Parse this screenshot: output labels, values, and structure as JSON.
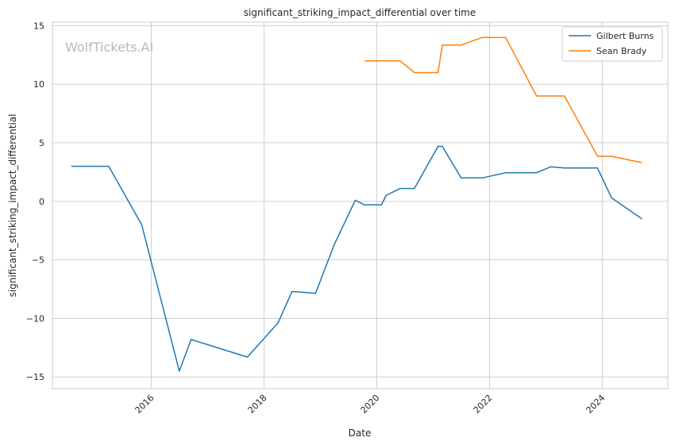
{
  "chart_data": {
    "type": "line",
    "title": "significant_striking_impact_differential over time",
    "xlabel": "Date",
    "ylabel": "significant_striking_impact_differential",
    "watermark": "WolfTickets.AI",
    "x_axis_type": "date",
    "xlim": [
      "2014-04-01",
      "2025-03-01"
    ],
    "ylim": [
      -16,
      15.3
    ],
    "x_ticks": [
      "2016-01-01",
      "2018-01-01",
      "2020-01-01",
      "2022-01-01",
      "2024-01-01"
    ],
    "x_tick_labels": [
      "2016",
      "2018",
      "2020",
      "2022",
      "2024"
    ],
    "y_ticks": [
      -15,
      -10,
      -5,
      0,
      5,
      10,
      15
    ],
    "y_tick_labels": [
      "−15",
      "−10",
      "−5",
      "0",
      "5",
      "10",
      "15"
    ],
    "x_tick_rotation": 45,
    "grid": true,
    "legend_position": "top-right",
    "series": [
      {
        "name": "Gilbert Burns",
        "color": "#1f77b4",
        "points": [
          {
            "x": "2014-08-01",
            "y": 3.0
          },
          {
            "x": "2015-04-01",
            "y": 3.0
          },
          {
            "x": "2015-11-01",
            "y": -2.0
          },
          {
            "x": "2016-07-01",
            "y": -14.5
          },
          {
            "x": "2016-09-15",
            "y": -11.8
          },
          {
            "x": "2017-09-15",
            "y": -13.3
          },
          {
            "x": "2018-04-01",
            "y": -10.4
          },
          {
            "x": "2018-07-01",
            "y": -7.7
          },
          {
            "x": "2018-12-01",
            "y": -7.85
          },
          {
            "x": "2019-04-01",
            "y": -3.7
          },
          {
            "x": "2019-08-15",
            "y": 0.1
          },
          {
            "x": "2019-10-15",
            "y": -0.3
          },
          {
            "x": "2020-02-01",
            "y": -0.3
          },
          {
            "x": "2020-03-01",
            "y": 0.5
          },
          {
            "x": "2020-06-01",
            "y": 1.1
          },
          {
            "x": "2020-09-01",
            "y": 1.1
          },
          {
            "x": "2021-02-01",
            "y": 4.7
          },
          {
            "x": "2021-03-01",
            "y": 4.7
          },
          {
            "x": "2021-07-01",
            "y": 2.0
          },
          {
            "x": "2021-11-15",
            "y": 2.0
          },
          {
            "x": "2022-04-15",
            "y": 2.45
          },
          {
            "x": "2022-11-01",
            "y": 2.45
          },
          {
            "x": "2023-02-01",
            "y": 2.95
          },
          {
            "x": "2023-05-01",
            "y": 2.85
          },
          {
            "x": "2023-12-01",
            "y": 2.85
          },
          {
            "x": "2024-03-01",
            "y": 0.3
          },
          {
            "x": "2024-09-15",
            "y": -1.5
          }
        ]
      },
      {
        "name": "Sean Brady",
        "color": "#ff7f0e",
        "points": [
          {
            "x": "2019-10-15",
            "y": 12.0
          },
          {
            "x": "2020-06-01",
            "y": 12.0
          },
          {
            "x": "2020-09-01",
            "y": 11.0
          },
          {
            "x": "2021-02-01",
            "y": 11.0
          },
          {
            "x": "2021-03-01",
            "y": 13.35
          },
          {
            "x": "2021-07-01",
            "y": 13.35
          },
          {
            "x": "2021-11-15",
            "y": 14.0
          },
          {
            "x": "2022-04-15",
            "y": 14.0
          },
          {
            "x": "2022-11-01",
            "y": 9.0
          },
          {
            "x": "2023-05-01",
            "y": 9.0
          },
          {
            "x": "2023-12-01",
            "y": 3.85
          },
          {
            "x": "2024-03-01",
            "y": 3.85
          },
          {
            "x": "2024-09-15",
            "y": 3.3
          }
        ]
      }
    ]
  }
}
